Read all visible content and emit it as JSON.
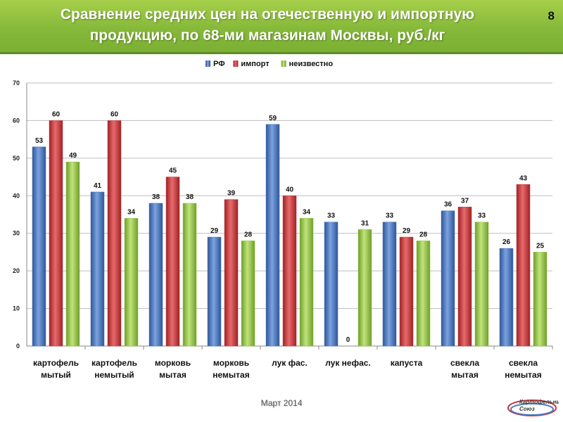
{
  "header": {
    "title_line1": "Сравнение средних цен на отечественную и импортную",
    "title_line2": "продукцию, по 68-ми магазинам Москвы, руб./кг",
    "page_number": "8"
  },
  "footer": {
    "date": "Март 2014",
    "logo_line1": "Картофельный",
    "logo_line2": "Союз"
  },
  "colors": {
    "header_green": "#8bbd3e",
    "series_rf": "#4a78c2",
    "series_import": "#c8383a",
    "series_unknown": "#96c542"
  },
  "chart_data": {
    "type": "bar",
    "categories": [
      [
        "картофель",
        "мытый"
      ],
      [
        "картофель",
        "немытый"
      ],
      [
        "морковь",
        "мытая"
      ],
      [
        "морковь",
        "немытая"
      ],
      [
        "лук фас.",
        ""
      ],
      [
        "лук нефас.",
        ""
      ],
      [
        "капуста",
        ""
      ],
      [
        "свекла",
        "мытая"
      ],
      [
        "свекла",
        "немытая"
      ]
    ],
    "series": [
      {
        "name": "РФ",
        "color": "#4a78c2",
        "values": [
          53,
          41,
          38,
          29,
          59,
          33,
          33,
          36,
          26
        ],
        "labels": [
          "53",
          "41",
          "38",
          "29",
          "59",
          "33",
          "33",
          "36",
          "26"
        ]
      },
      {
        "name": "импорт",
        "color": "#c8383a",
        "values": [
          60,
          60,
          45,
          39,
          40,
          0,
          29,
          37,
          43
        ],
        "labels": [
          "60",
          "60",
          "45",
          "39",
          "40",
          "0",
          "29",
          "37",
          "43"
        ]
      },
      {
        "name": "неизвестно",
        "color": "#96c542",
        "values": [
          49,
          34,
          38,
          28,
          34,
          31,
          28,
          33,
          25
        ],
        "labels": [
          "49",
          "34",
          "38",
          "28",
          "34",
          "31",
          "28",
          "33",
          "25"
        ]
      }
    ],
    "yticks": [
      "0",
      "10",
      "20",
      "30",
      "40",
      "50",
      "60",
      "70"
    ],
    "ylim": [
      0,
      70
    ],
    "grid": true,
    "legend_position": "top-center"
  }
}
